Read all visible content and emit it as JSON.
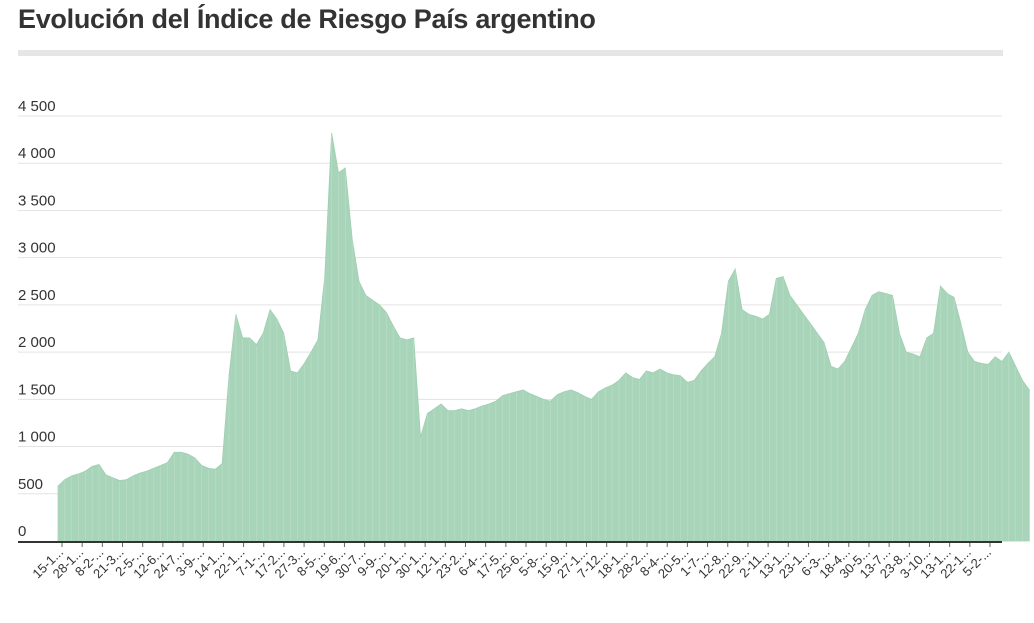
{
  "chart_data": {
    "type": "area",
    "title": "Evolución del Índice de Riesgo País argentino",
    "xlabel": "",
    "ylabel": "",
    "ylim": [
      0,
      4500
    ],
    "yticks": [
      0,
      500,
      1000,
      1500,
      2000,
      2500,
      3000,
      3500,
      4000,
      4500
    ],
    "ytick_labels": [
      "0",
      "500",
      "1 000",
      "1 500",
      "2 000",
      "2 500",
      "3 000",
      "3 500",
      "4 000",
      "4 500"
    ],
    "grid": true,
    "legend": "none",
    "color": "#a8d5b9",
    "xtick_labels": [
      "15-1...",
      "28-1...",
      "8-2-...",
      "21-3...",
      "2-5-...",
      "12-6...",
      "24-7...",
      "3-9-...",
      "14-1...",
      "22-1...",
      "7-1-...",
      "17-2...",
      "27-3...",
      "8-5-...",
      "19-6...",
      "30-7...",
      "9-9-...",
      "20-1...",
      "30-1...",
      "12-1...",
      "23-2...",
      "6-4-...",
      "17-5...",
      "25-6...",
      "5-8-...",
      "15-9...",
      "27-1...",
      "7-12...",
      "18-1...",
      "28-2...",
      "8-4-...",
      "20-5...",
      "1-7-...",
      "12-8...",
      "22-9...",
      "2-11...",
      "13-1...",
      "23-1...",
      "6-3-...",
      "18-4...",
      "30-5...",
      "13-7...",
      "23-8...",
      "3-10...",
      "13-1...",
      "22-1...",
      "5-2-..."
    ],
    "values": [
      580,
      650,
      690,
      710,
      740,
      790,
      810,
      700,
      670,
      640,
      650,
      690,
      720,
      740,
      770,
      800,
      830,
      940,
      940,
      920,
      880,
      800,
      770,
      760,
      820,
      1750,
      2400,
      2150,
      2150,
      2080,
      2200,
      2450,
      2350,
      2200,
      1800,
      1780,
      1880,
      2000,
      2130,
      2800,
      4320,
      3900,
      3950,
      3200,
      2750,
      2600,
      2550,
      2500,
      2420,
      2280,
      2150,
      2130,
      2150,
      1100,
      1350,
      1400,
      1450,
      1380,
      1380,
      1400,
      1380,
      1400,
      1430,
      1450,
      1480,
      1540,
      1560,
      1580,
      1600,
      1560,
      1530,
      1500,
      1480,
      1550,
      1580,
      1600,
      1570,
      1530,
      1500,
      1580,
      1620,
      1650,
      1700,
      1780,
      1730,
      1710,
      1800,
      1780,
      1820,
      1780,
      1760,
      1750,
      1680,
      1700,
      1800,
      1880,
      1950,
      2200,
      2750,
      2880,
      2450,
      2400,
      2380,
      2350,
      2400,
      2780,
      2800,
      2600,
      2500,
      2400,
      2300,
      2200,
      2100,
      1850,
      1820,
      1900,
      2050,
      2200,
      2450,
      2600,
      2640,
      2620,
      2600,
      2200,
      2000,
      1980,
      1950,
      2150,
      2200,
      2700,
      2620,
      2580,
      2300,
      2000,
      1900,
      1880,
      1870,
      1950,
      1900,
      2000,
      1850,
      1700,
      1600
    ],
    "xlim": [
      0,
      138
    ]
  }
}
